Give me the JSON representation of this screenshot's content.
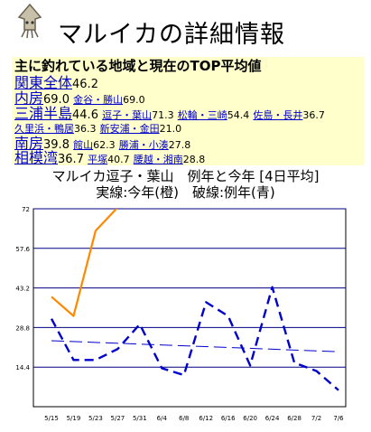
{
  "header": {
    "logo_icon": "squid-icon",
    "title": "マルイカの詳細情報"
  },
  "info": {
    "heading": "主に釣れている地域と現在のTOP平均値",
    "regions": [
      {
        "name": "関東全体",
        "value": "46.2",
        "areas": []
      },
      {
        "name": "内房",
        "value": "69.0",
        "areas": [
          {
            "name": "金谷・勝山",
            "value": "69.0"
          }
        ]
      },
      {
        "name": "三浦半島",
        "value": "44.6",
        "areas": [
          {
            "name": "逗子・葉山",
            "value": "71.3"
          },
          {
            "name": "松輪・三崎",
            "value": "54.4"
          },
          {
            "name": "佐島・長井",
            "value": "36.7"
          },
          {
            "name": "久里浜・鴨居",
            "value": "36.3"
          },
          {
            "name": "新安浦・金田",
            "value": "21.0"
          }
        ]
      },
      {
        "name": "南房",
        "value": "39.8",
        "areas": [
          {
            "name": "館山",
            "value": "62.3"
          },
          {
            "name": "勝浦・小湊",
            "value": "27.8"
          }
        ]
      },
      {
        "name": "相模湾",
        "value": "36.7",
        "areas": [
          {
            "name": "平塚",
            "value": "40.7"
          },
          {
            "name": "腰越・湘南",
            "value": "28.8"
          }
        ]
      }
    ]
  },
  "chart_title": "マルイカ逗子・葉山　例年と今年 [4日平均]",
  "chart_subtitle": "実線:今年(橙)　破線:例年(青)",
  "chart_data": {
    "type": "line",
    "categories": [
      "5/15",
      "5/19",
      "5/23",
      "5/27",
      "5/31",
      "6/4",
      "6/8",
      "6/12",
      "6/16",
      "6/20",
      "6/24",
      "6/28",
      "7/2",
      "7/6"
    ],
    "ylim": [
      0,
      72
    ],
    "yticks": [
      "72",
      "57.6",
      "43.2",
      "28.8",
      "14.4"
    ],
    "grid": true,
    "series": [
      {
        "style": "solid",
        "color": "#ff8800",
        "points": [
          [
            0,
            40
          ],
          [
            1,
            33
          ],
          [
            2,
            64
          ],
          [
            3,
            72.5
          ]
        ]
      },
      {
        "style": "dashed",
        "color": "#0000cc",
        "points": [
          [
            0,
            32
          ],
          [
            1,
            17
          ],
          [
            2,
            17
          ],
          [
            3,
            21
          ],
          [
            4,
            30
          ],
          [
            5,
            14
          ],
          [
            6,
            11.5
          ],
          [
            7,
            38
          ],
          [
            8,
            33
          ],
          [
            9,
            15
          ],
          [
            10,
            43.5
          ],
          [
            11,
            16
          ],
          [
            12,
            13
          ],
          [
            13,
            6
          ]
        ]
      },
      {
        "style": "long-dashed",
        "color": "#0000cc",
        "points": [
          [
            0,
            24
          ],
          [
            13,
            20
          ]
        ]
      }
    ]
  }
}
